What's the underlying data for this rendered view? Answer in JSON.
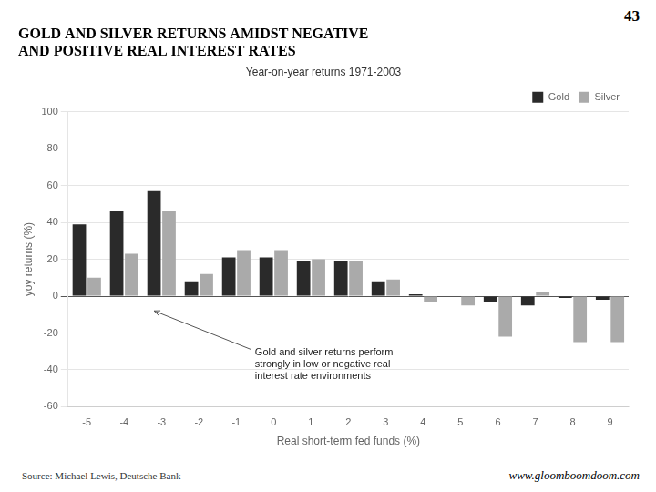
{
  "chart_data": {
    "type": "bar",
    "title": [
      "GOLD AND SILVER RETURNS AMIDST NEGATIVE",
      "AND POSITIVE REAL INTEREST RATES"
    ],
    "subtitle": "Year-on-year returns 1971-2003",
    "xlabel": "Real short-term fed funds (%)",
    "ylabel": "yoy returns (%)",
    "categories": [
      "-5",
      "-4",
      "-3",
      "-2",
      "-1",
      "0",
      "1",
      "2",
      "3",
      "4",
      "5",
      "6",
      "7",
      "8",
      "9"
    ],
    "series": [
      {
        "name": "Gold",
        "color": "#2a2a2a",
        "values": [
          39,
          46,
          57,
          8,
          21,
          21,
          19,
          19,
          8,
          1,
          0,
          -3,
          -5,
          -1,
          -2
        ]
      },
      {
        "name": "Silver",
        "color": "#aaaaaa",
        "values": [
          10,
          23,
          46,
          12,
          25,
          25,
          20,
          19,
          9,
          -3,
          -5,
          -22,
          2,
          -25,
          -25
        ]
      }
    ],
    "ylim": [
      -60,
      100
    ],
    "yticks": [
      -60,
      -40,
      -20,
      0,
      20,
      40,
      60,
      80,
      100
    ],
    "grid": true,
    "legend": "upper right",
    "annotation": "Gold and silver returns perform\nstrongly in low or negative real\ninterest rate environments",
    "page_number": "43",
    "source": "Source: Michael Lewis, Deutsche Bank",
    "website": "www.gloomboomdoom.com"
  }
}
